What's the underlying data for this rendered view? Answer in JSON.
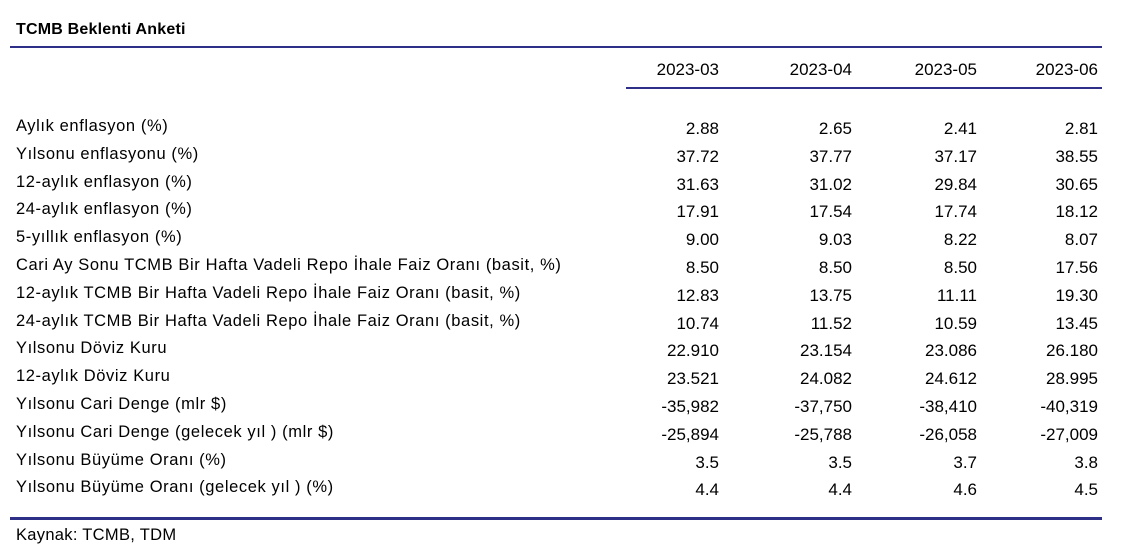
{
  "title": "TCMB Beklenti Anketi",
  "columns": [
    "2023-03",
    "2023-04",
    "2023-05",
    "2023-06"
  ],
  "rows": [
    {
      "label": "Aylık enflasyon (%)",
      "values": [
        "2.88",
        "2.65",
        "2.41",
        "2.81"
      ]
    },
    {
      "label": "Yılsonu enflasyonu (%)",
      "values": [
        "37.72",
        "37.77",
        "37.17",
        "38.55"
      ]
    },
    {
      "label": "12-aylık enflasyon (%)",
      "values": [
        "31.63",
        "31.02",
        "29.84",
        "30.65"
      ]
    },
    {
      "label": "24-aylık enflasyon (%)",
      "values": [
        "17.91",
        "17.54",
        "17.74",
        "18.12"
      ]
    },
    {
      "label": "5-yıllık enflasyon (%)",
      "values": [
        "9.00",
        "9.03",
        "8.22",
        "8.07"
      ]
    },
    {
      "label": "Cari Ay Sonu TCMB Bir Hafta Vadeli Repo İhale Faiz Oranı (basit, %)",
      "values": [
        "8.50",
        "8.50",
        "8.50",
        "17.56"
      ]
    },
    {
      "label": "12-aylık TCMB Bir Hafta Vadeli Repo İhale Faiz Oranı (basit, %)",
      "values": [
        "12.83",
        "13.75",
        "11.11",
        "19.30"
      ]
    },
    {
      "label": "24-aylık TCMB Bir Hafta Vadeli Repo İhale Faiz Oranı (basit, %)",
      "values": [
        "10.74",
        "11.52",
        "10.59",
        "13.45"
      ]
    },
    {
      "label": "Yılsonu Döviz Kuru",
      "values": [
        "22.910",
        "23.154",
        "23.086",
        "26.180"
      ]
    },
    {
      "label": "12-aylık Döviz Kuru",
      "values": [
        "23.521",
        "24.082",
        "24.612",
        "28.995"
      ]
    },
    {
      "label": "Yılsonu Cari Denge (mlr $)",
      "values": [
        "-35,982",
        "-37,750",
        "-38,410",
        "-40,319"
      ]
    },
    {
      "label": "Yılsonu Cari Denge (gelecek yıl ) (mlr $)",
      "values": [
        "-25,894",
        "-25,788",
        "-26,058",
        "-27,009"
      ]
    },
    {
      "label": "Yılsonu Büyüme Oranı (%)",
      "values": [
        "3.5",
        "3.5",
        "3.7",
        "3.8"
      ]
    },
    {
      "label": "Yılsonu Büyüme Oranı (gelecek yıl ) (%)",
      "values": [
        "4.4",
        "4.4",
        "4.6",
        "4.5"
      ]
    }
  ],
  "source": "Kaynak: TCMB, TDM",
  "colors": {
    "rule": "#2e2f86"
  }
}
